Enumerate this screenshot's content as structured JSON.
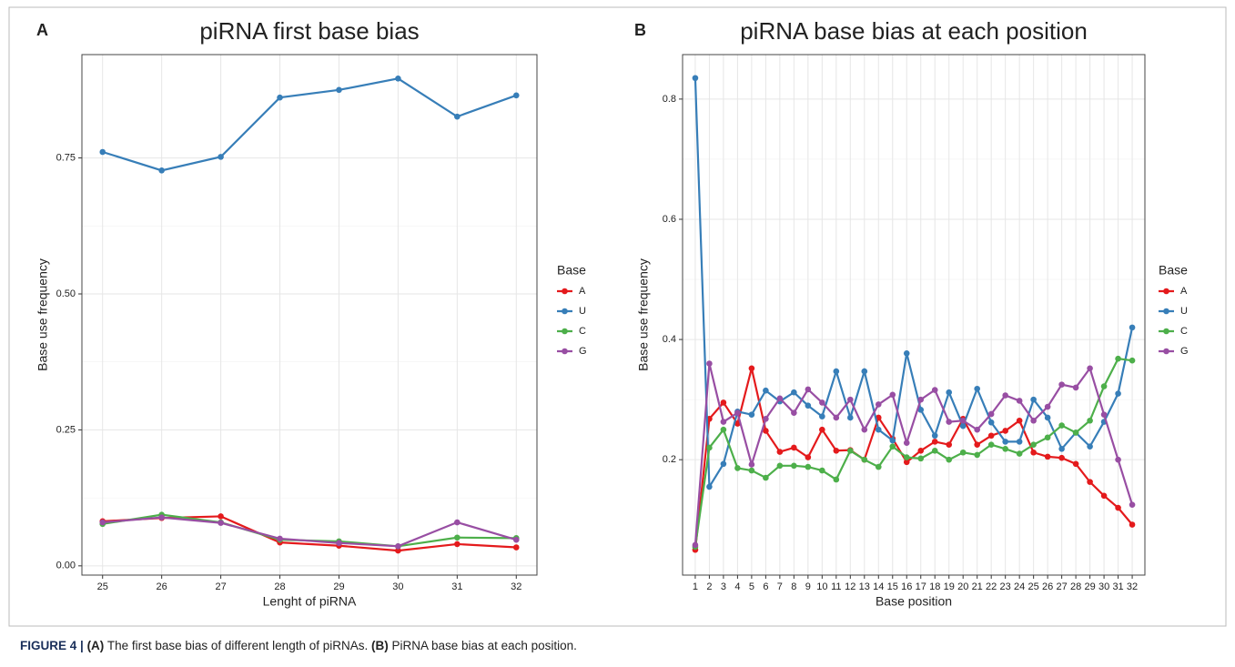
{
  "chart_data": [
    {
      "type": "line",
      "label": "A",
      "title": "piRNA first base bias",
      "xlabel": "Lenght of piRNA",
      "ylabel": "Base use frequency",
      "x": [
        25,
        26,
        27,
        28,
        29,
        30,
        31,
        32
      ],
      "xlim": [
        24.65,
        32.35
      ],
      "xticks": [
        25,
        26,
        27,
        28,
        29,
        30,
        31,
        32
      ],
      "ylim": [
        -0.017,
        0.94
      ],
      "yticks": [
        {
          "value": 0,
          "label": "0.00"
        },
        0.25,
        {
          "value": 0.5,
          "label": "0.50"
        },
        0.75
      ],
      "grid": true,
      "legend_title": "Base",
      "legend": "right",
      "series": [
        {
          "name": "A",
          "color": "#e41a1c",
          "values": [
            0.082,
            0.088,
            0.091,
            0.043,
            0.037,
            0.028,
            0.04,
            0.034
          ]
        },
        {
          "name": "U",
          "color": "#377eb8",
          "values": [
            0.761,
            0.727,
            0.752,
            0.861,
            0.875,
            0.896,
            0.826,
            0.865
          ]
        },
        {
          "name": "C",
          "color": "#4daf4a",
          "values": [
            0.077,
            0.094,
            0.08,
            0.048,
            0.045,
            0.036,
            0.052,
            0.051
          ]
        },
        {
          "name": "G",
          "color": "#984ea3",
          "values": [
            0.08,
            0.089,
            0.079,
            0.05,
            0.042,
            0.036,
            0.08,
            0.048
          ]
        }
      ]
    },
    {
      "type": "line",
      "label": "B",
      "title": "piRNA base bias at each position",
      "xlabel": "Base position",
      "ylabel": "Base use frequency",
      "x": [
        1,
        2,
        3,
        4,
        5,
        6,
        7,
        8,
        9,
        10,
        11,
        12,
        13,
        14,
        15,
        16,
        17,
        18,
        19,
        20,
        21,
        22,
        23,
        24,
        25,
        26,
        27,
        28,
        29,
        30,
        31,
        32
      ],
      "xlim": [
        0.1,
        32.9
      ],
      "xticks": [
        1,
        2,
        3,
        4,
        5,
        6,
        7,
        8,
        9,
        10,
        11,
        12,
        13,
        14,
        15,
        16,
        17,
        18,
        19,
        20,
        21,
        22,
        23,
        24,
        25,
        26,
        27,
        28,
        29,
        30,
        31,
        32
      ],
      "ylim": [
        0.008,
        0.874
      ],
      "yticks": [
        0.2,
        0.4,
        0.6,
        0.8
      ],
      "grid": true,
      "legend_title": "Base",
      "legend": "right",
      "series": [
        {
          "name": "A",
          "color": "#e41a1c",
          "values": [
            0.05,
            0.268,
            0.295,
            0.26,
            0.352,
            0.248,
            0.213,
            0.22,
            0.204,
            0.25,
            0.215,
            0.216,
            0.2,
            0.27,
            0.235,
            0.196,
            0.215,
            0.23,
            0.225,
            0.268,
            0.225,
            0.24,
            0.248,
            0.265,
            0.212,
            0.205,
            0.203,
            0.193,
            0.163,
            0.14,
            0.12,
            0.092
          ]
        },
        {
          "name": "U",
          "color": "#377eb8",
          "values": [
            0.835,
            0.155,
            0.193,
            0.28,
            0.275,
            0.315,
            0.297,
            0.312,
            0.29,
            0.272,
            0.347,
            0.27,
            0.347,
            0.25,
            0.232,
            0.377,
            0.283,
            0.24,
            0.312,
            0.256,
            0.318,
            0.262,
            0.23,
            0.23,
            0.3,
            0.27,
            0.218,
            0.245,
            0.222,
            0.263,
            0.31,
            0.42
          ]
        },
        {
          "name": "C",
          "color": "#4daf4a",
          "values": [
            0.055,
            0.22,
            0.25,
            0.186,
            0.182,
            0.17,
            0.19,
            0.19,
            0.188,
            0.182,
            0.167,
            0.215,
            0.2,
            0.188,
            0.222,
            0.204,
            0.202,
            0.215,
            0.2,
            0.212,
            0.208,
            0.225,
            0.218,
            0.21,
            0.225,
            0.237,
            0.257,
            0.245,
            0.265,
            0.322,
            0.368,
            0.365
          ]
        },
        {
          "name": "G",
          "color": "#984ea3",
          "values": [
            0.058,
            0.36,
            0.263,
            0.278,
            0.192,
            0.268,
            0.302,
            0.278,
            0.317,
            0.295,
            0.27,
            0.3,
            0.25,
            0.292,
            0.308,
            0.228,
            0.3,
            0.316,
            0.263,
            0.265,
            0.25,
            0.276,
            0.307,
            0.298,
            0.265,
            0.288,
            0.325,
            0.32,
            0.352,
            0.275,
            0.2,
            0.125
          ]
        }
      ]
    }
  ],
  "caption": [
    "FIGURE 4 |",
    "(A)",
    "The first base bias of different length of piRNAs.",
    "(B)",
    "PiRNA base bias at each position."
  ]
}
